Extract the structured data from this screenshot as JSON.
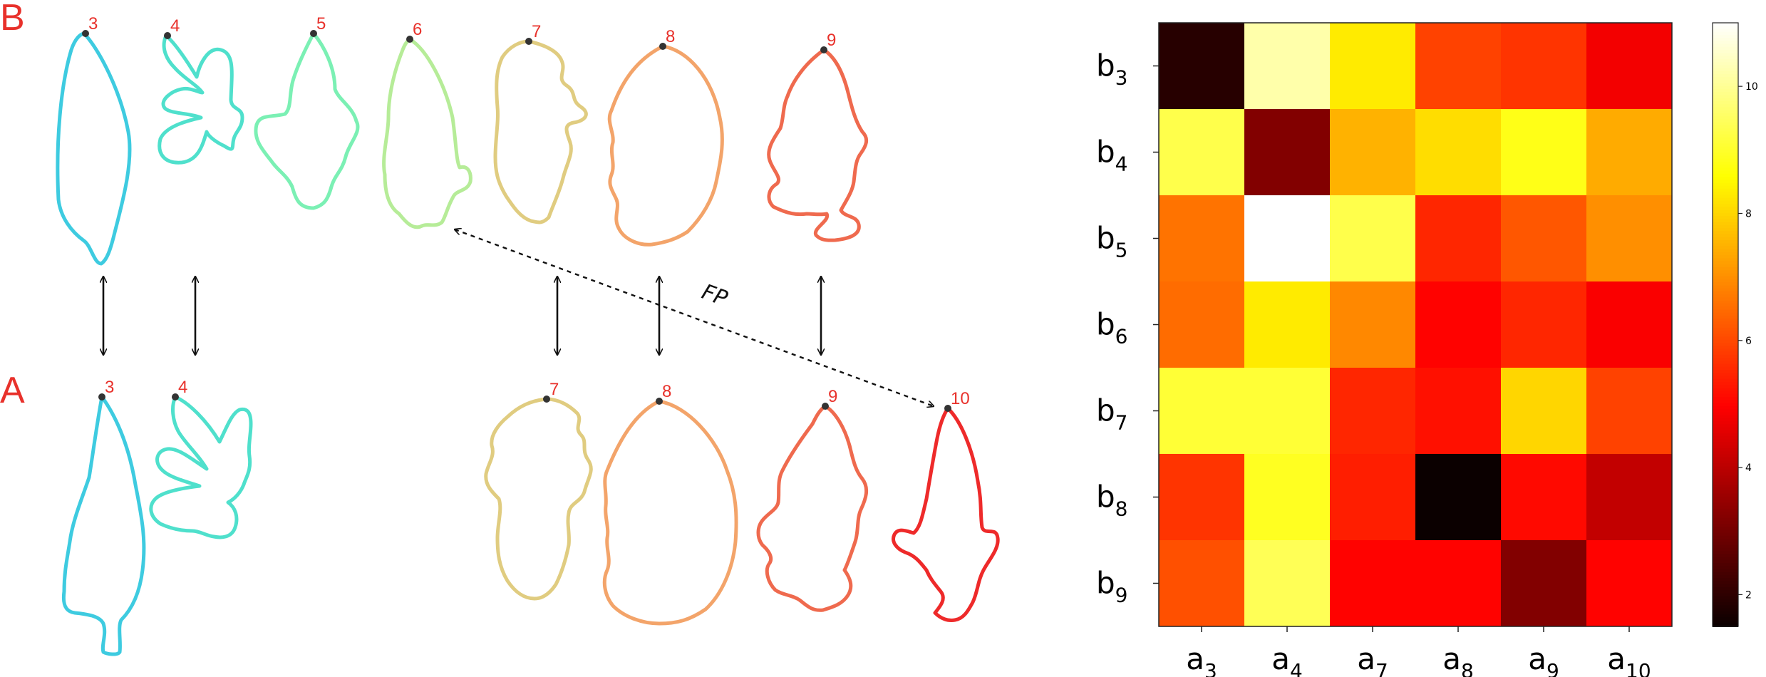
{
  "panels": {
    "top_label": "B",
    "bottom_label": "A"
  },
  "leaves_top": [
    {
      "label": "3",
      "color": "#3ecbe0"
    },
    {
      "label": "4",
      "color": "#4fe0cc"
    },
    {
      "label": "5",
      "color": "#7bf0b4"
    },
    {
      "label": "6",
      "color": "#b6ec98"
    },
    {
      "label": "7",
      "color": "#e0cc80"
    },
    {
      "label": "8",
      "color": "#f3a46a"
    },
    {
      "label": "9",
      "color": "#ef6a4e"
    }
  ],
  "leaves_bottom": [
    {
      "label": "3",
      "color": "#3ecbe0"
    },
    {
      "label": "4",
      "color": "#4fe0cc"
    },
    {
      "label": "7",
      "color": "#e0cc80"
    },
    {
      "label": "8",
      "color": "#f3a46a"
    },
    {
      "label": "9",
      "color": "#ef6a4e"
    },
    {
      "label": "10",
      "color": "#ee2a2a"
    }
  ],
  "match_label": "FP",
  "chart_data": {
    "type": "heatmap",
    "rows": [
      {
        "base": "b",
        "sub": "3"
      },
      {
        "base": "b",
        "sub": "4"
      },
      {
        "base": "b",
        "sub": "5"
      },
      {
        "base": "b",
        "sub": "6"
      },
      {
        "base": "b",
        "sub": "7"
      },
      {
        "base": "b",
        "sub": "8"
      },
      {
        "base": "b",
        "sub": "9"
      }
    ],
    "columns": [
      {
        "base": "a",
        "sub": "3"
      },
      {
        "base": "a",
        "sub": "4"
      },
      {
        "base": "a",
        "sub": "7"
      },
      {
        "base": "a",
        "sub": "8"
      },
      {
        "base": "a",
        "sub": "9"
      },
      {
        "base": "a",
        "sub": "10"
      }
    ],
    "values": [
      [
        1.9,
        10.2,
        8.3,
        5.9,
        5.7,
        4.8
      ],
      [
        9.3,
        3.2,
        7.5,
        8.1,
        8.8,
        7.4
      ],
      [
        6.6,
        11.0,
        9.3,
        5.5,
        6.2,
        7.0
      ],
      [
        6.5,
        8.3,
        6.9,
        5.0,
        5.5,
        4.9
      ],
      [
        9.1,
        9.1,
        5.5,
        5.2,
        8.0,
        5.9
      ],
      [
        5.7,
        8.9,
        5.4,
        1.5,
        5.1,
        4.1
      ],
      [
        6.1,
        9.4,
        5.0,
        5.0,
        3.2,
        5.0
      ]
    ],
    "colorbar": {
      "min": 1.5,
      "max": 11.0,
      "ticks": [
        2,
        4,
        6,
        8,
        10
      ],
      "colormap": "hot"
    }
  }
}
